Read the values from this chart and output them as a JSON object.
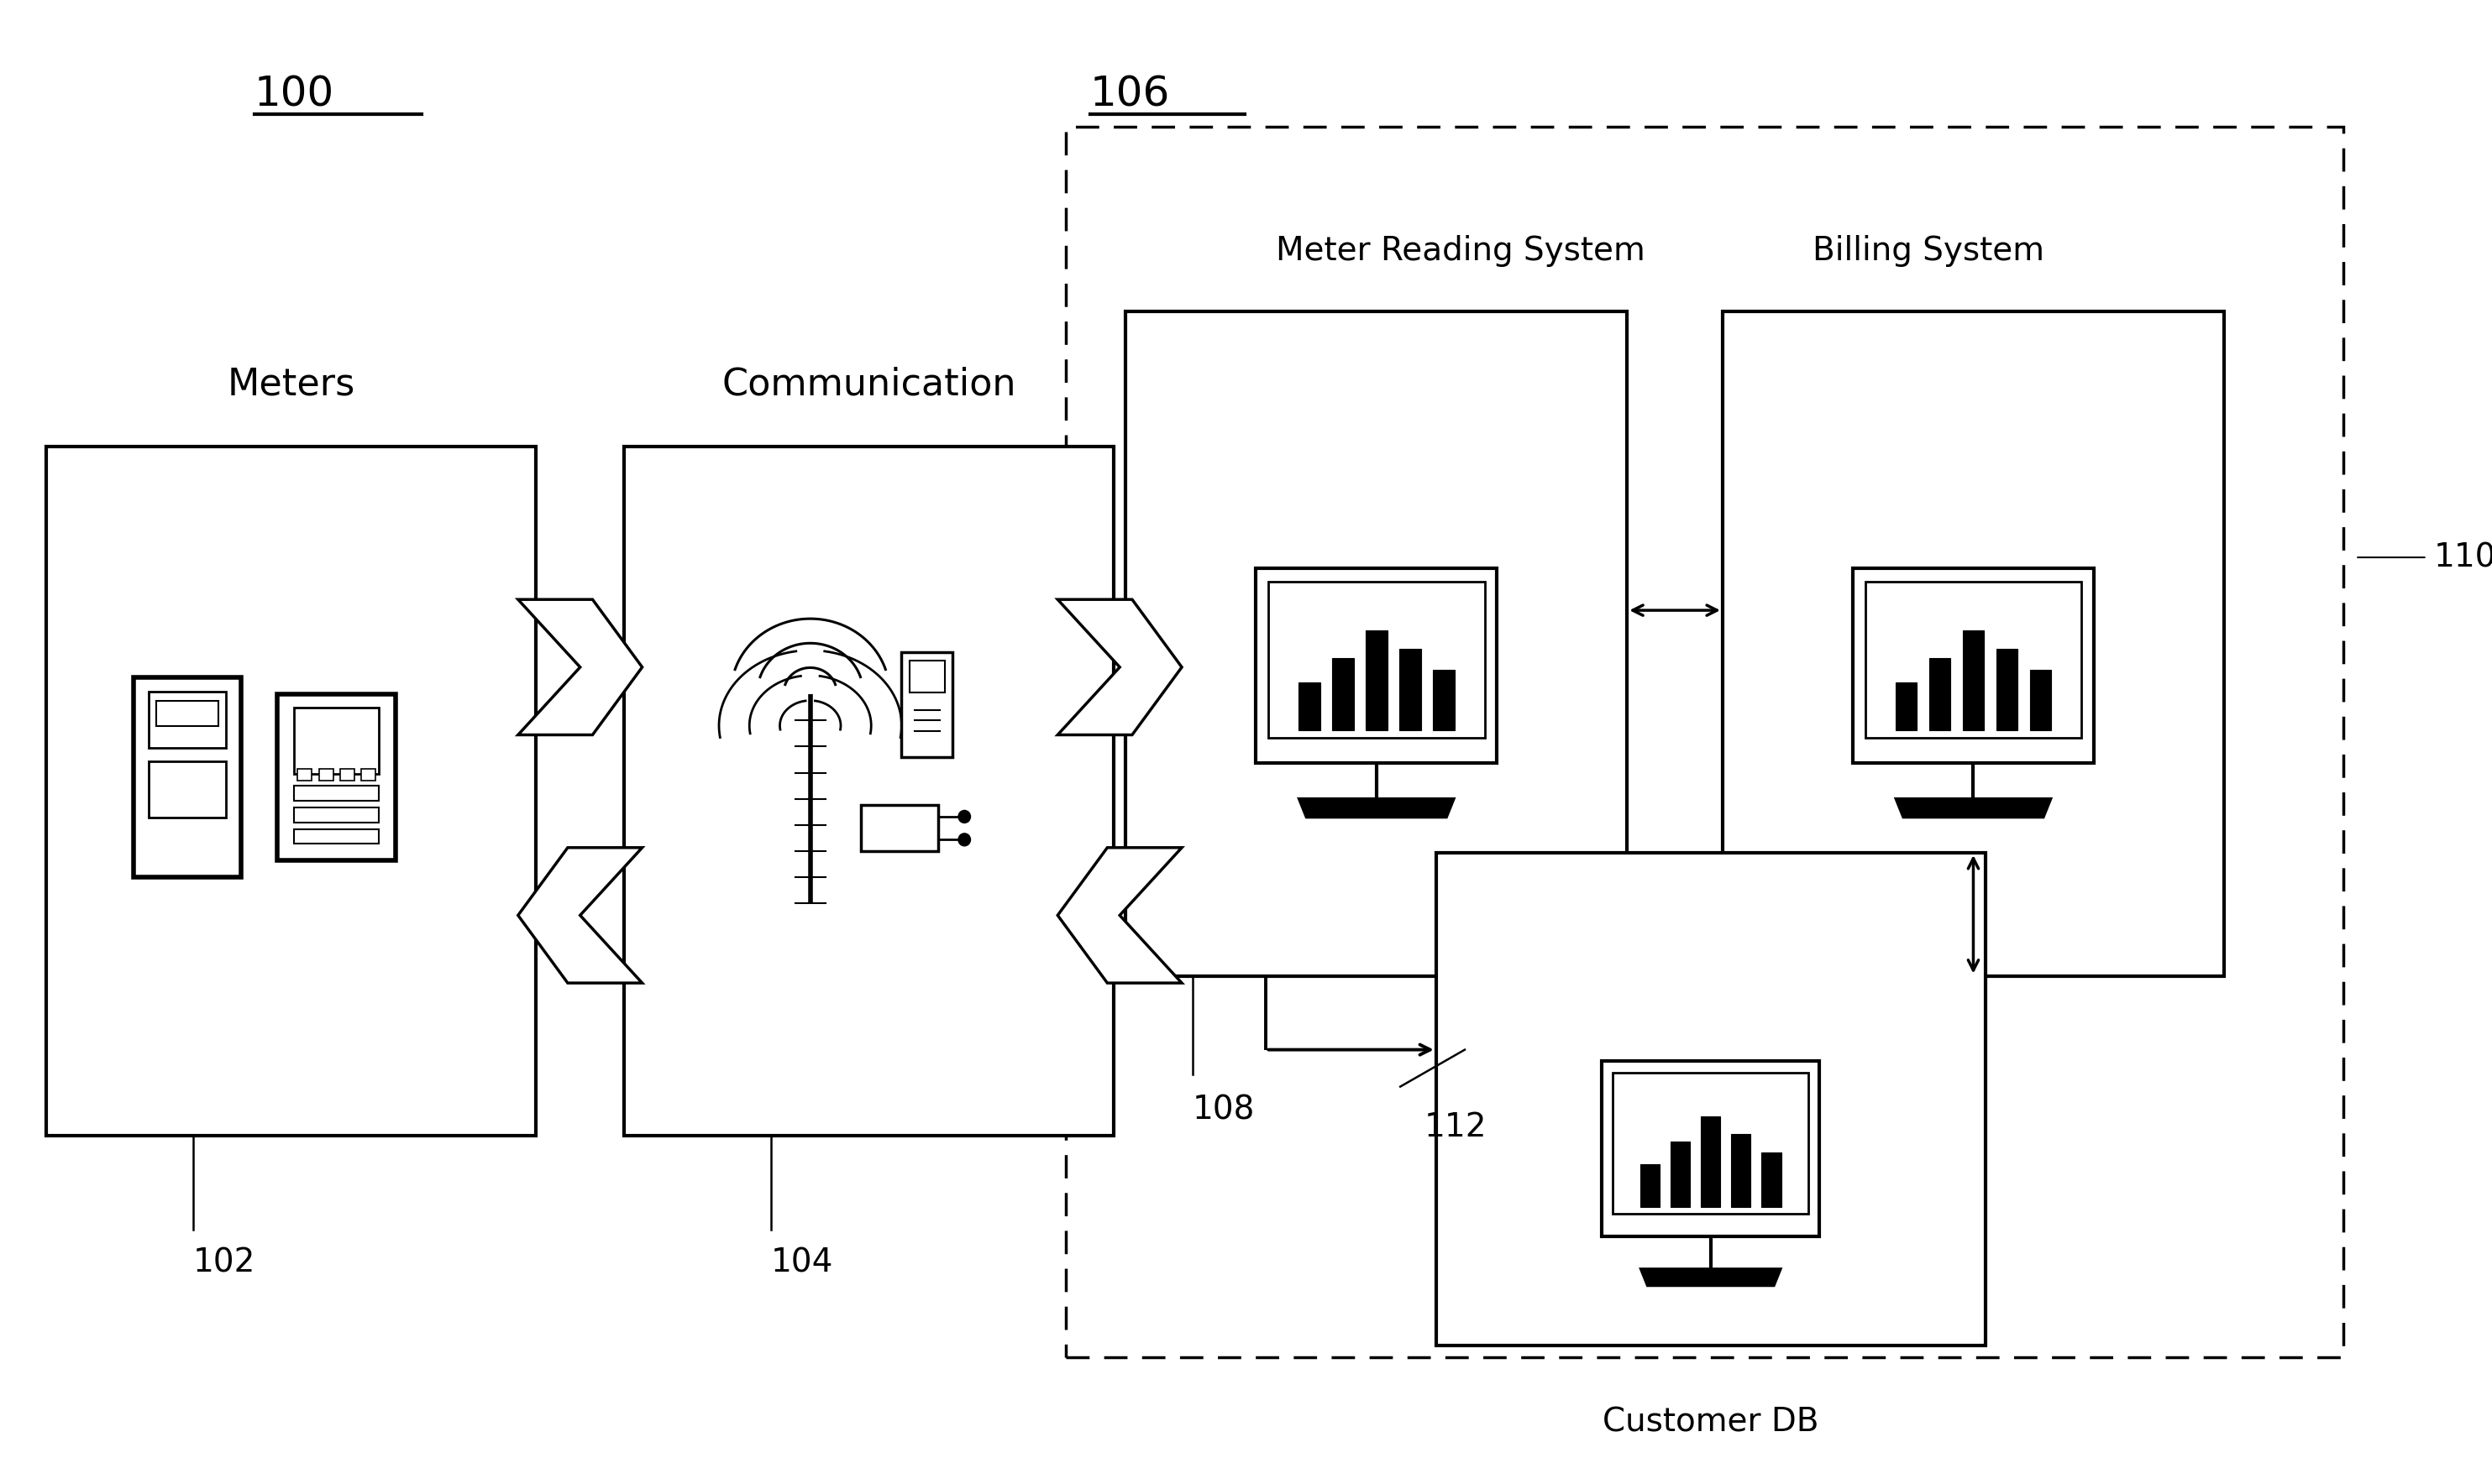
{
  "background_color": "#ffffff",
  "label_100": "100",
  "label_106": "106",
  "label_meters": "Meters",
  "label_communication": "Communication",
  "label_meter_reading": "Meter Reading System",
  "label_billing": "Billing System",
  "label_customer_db": "Customer DB",
  "label_102": "102",
  "label_104": "104",
  "label_108": "108",
  "label_110": "110",
  "label_112": "112"
}
